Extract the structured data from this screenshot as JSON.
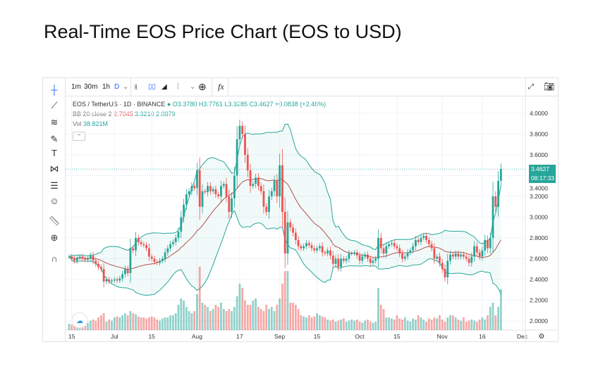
{
  "page_title": "Real-Time EOS Price Chart (EOS to USD)",
  "toolbar": {
    "intervals": [
      "1m",
      "30m",
      "1h",
      "D"
    ],
    "fx_label": "fx"
  },
  "legend": {
    "symbol": "EOS / TetherUS · 1D · BINANCE",
    "open": "O3.3780",
    "high": "H3.7761",
    "low": "L3.3285",
    "close": "C3.4627",
    "change": "+0.0838 (+2.48%)",
    "bb_label": "BB 20 close 2",
    "bb_basis": "2.7045",
    "bb_upper": "3.3210",
    "bb_lower": "2.0879",
    "vol_label": "Vol",
    "vol_value": "38.821M"
  },
  "badges": {
    "price": "3.4627",
    "countdown": "08:17:33"
  },
  "colors": {
    "up": "#26a69a",
    "down": "#ef5350",
    "basis": "#b05050",
    "band": "#26a69a"
  },
  "left_tools": [
    "crosshair-icon",
    "trend-line-icon",
    "fib-icon",
    "brush-icon",
    "text-icon",
    "pattern-icon",
    "forecast-icon",
    "emoji-icon",
    "ruler-icon",
    "zoom-in-icon",
    "magnet-icon"
  ],
  "chart_data": {
    "type": "candlestick",
    "start_date": "2021-06-14",
    "y_ticks": [
      "4.0000",
      "3.8000",
      "3.6000",
      "3.4000",
      "3.2000",
      "3.0000",
      "2.8000",
      "2.6000",
      "2.4000",
      "2.2000",
      "2.0000"
    ],
    "ylim": [
      1.92,
      4.12
    ],
    "x_ticks": [
      {
        "label": "15",
        "date": "2021-06-15"
      },
      {
        "label": "Jul",
        "date": "2021-07-01"
      },
      {
        "label": "15",
        "date": "2021-07-15"
      },
      {
        "label": "Aug",
        "date": "2021-08-01"
      },
      {
        "label": "17",
        "date": "2021-08-17"
      },
      {
        "label": "Sep",
        "date": "2021-09-01"
      },
      {
        "label": "15",
        "date": "2021-09-15"
      },
      {
        "label": "Oct",
        "date": "2021-10-01"
      },
      {
        "label": "15",
        "date": "2021-10-15"
      },
      {
        "label": "Nov",
        "date": "2021-11-01"
      },
      {
        "label": "16",
        "date": "2021-11-16"
      },
      {
        "label": "Dec",
        "date": "2021-12-01"
      }
    ],
    "close": [
      2.62,
      2.6,
      2.58,
      2.61,
      2.62,
      2.6,
      2.59,
      2.6,
      2.63,
      2.58,
      2.55,
      2.52,
      2.5,
      2.38,
      2.4,
      2.38,
      2.39,
      2.4,
      2.39,
      2.41,
      2.45,
      2.5,
      2.46,
      2.7,
      2.68,
      2.8,
      2.76,
      2.74,
      2.73,
      2.7,
      2.62,
      2.6,
      2.57,
      2.56,
      2.58,
      2.6,
      2.66,
      2.7,
      2.74,
      2.76,
      2.8,
      2.86,
      3.0,
      3.12,
      3.22,
      3.25,
      3.3,
      3.28,
      3.45,
      3.1,
      3.25,
      3.24,
      3.3,
      3.25,
      3.27,
      3.22,
      3.2,
      3.3,
      3.32,
      3.2,
      3.05,
      3.18,
      3.4,
      3.75,
      3.88,
      3.8,
      3.6,
      3.45,
      3.3,
      3.32,
      3.38,
      3.3,
      3.25,
      3.1,
      3.05,
      3.2,
      3.25,
      3.35,
      3.2,
      3.5,
      3.05,
      2.65,
      2.95,
      2.9,
      2.85,
      2.78,
      2.72,
      2.7,
      2.72,
      2.75,
      2.73,
      2.7,
      2.68,
      2.7,
      2.72,
      2.66,
      2.65,
      2.68,
      2.63,
      2.55,
      2.6,
      2.52,
      2.6,
      2.58,
      2.6,
      2.65,
      2.65,
      2.66,
      2.63,
      2.58,
      2.62,
      2.64,
      2.6,
      2.56,
      2.58,
      2.6,
      2.8,
      2.7,
      2.65,
      2.72,
      2.74,
      2.75,
      2.72,
      2.7,
      2.65,
      2.6,
      2.62,
      2.66,
      2.68,
      2.72,
      2.78,
      2.76,
      2.8,
      2.82,
      2.78,
      2.74,
      2.7,
      2.6,
      2.62,
      2.56,
      2.5,
      2.42,
      2.58,
      2.64,
      2.62,
      2.65,
      2.62,
      2.64,
      2.62,
      2.6,
      2.56,
      2.62,
      2.72,
      2.66,
      2.62,
      2.68,
      2.78,
      2.7,
      2.8,
      3.2,
      3.1,
      3.35,
      3.4627
    ],
    "volume_m": [
      6,
      5,
      7,
      5,
      6,
      6,
      8,
      7,
      9,
      10,
      9,
      12,
      14,
      16,
      8,
      10,
      9,
      12,
      13,
      12,
      14,
      16,
      14,
      18,
      16,
      15,
      13,
      12,
      12,
      11,
      12,
      13,
      12,
      10,
      9,
      11,
      12,
      12,
      14,
      14,
      16,
      24,
      30,
      28,
      22,
      18,
      16,
      18,
      34,
      60,
      26,
      24,
      22,
      18,
      20,
      24,
      22,
      26,
      20,
      18,
      20,
      18,
      22,
      32,
      44,
      40,
      28,
      24,
      24,
      28,
      30,
      22,
      20,
      18,
      24,
      20,
      22,
      18,
      24,
      30,
      44,
      56,
      56,
      26,
      26,
      24,
      20,
      14,
      13,
      12,
      14,
      12,
      13,
      16,
      14,
      13,
      12,
      10,
      9,
      10,
      8,
      9,
      10,
      11,
      8,
      9,
      10,
      9,
      10,
      8,
      7,
      9,
      10,
      8,
      7,
      8,
      40,
      24,
      20,
      12,
      12,
      11,
      10,
      14,
      11,
      10,
      12,
      9,
      8,
      11,
      10,
      14,
      12,
      10,
      8,
      11,
      10,
      12,
      11,
      14,
      10,
      8,
      12,
      14,
      14,
      12,
      10,
      9,
      12,
      8,
      9,
      10,
      9,
      8,
      10,
      12,
      10,
      14,
      22,
      26,
      14,
      22,
      38.821
    ]
  }
}
